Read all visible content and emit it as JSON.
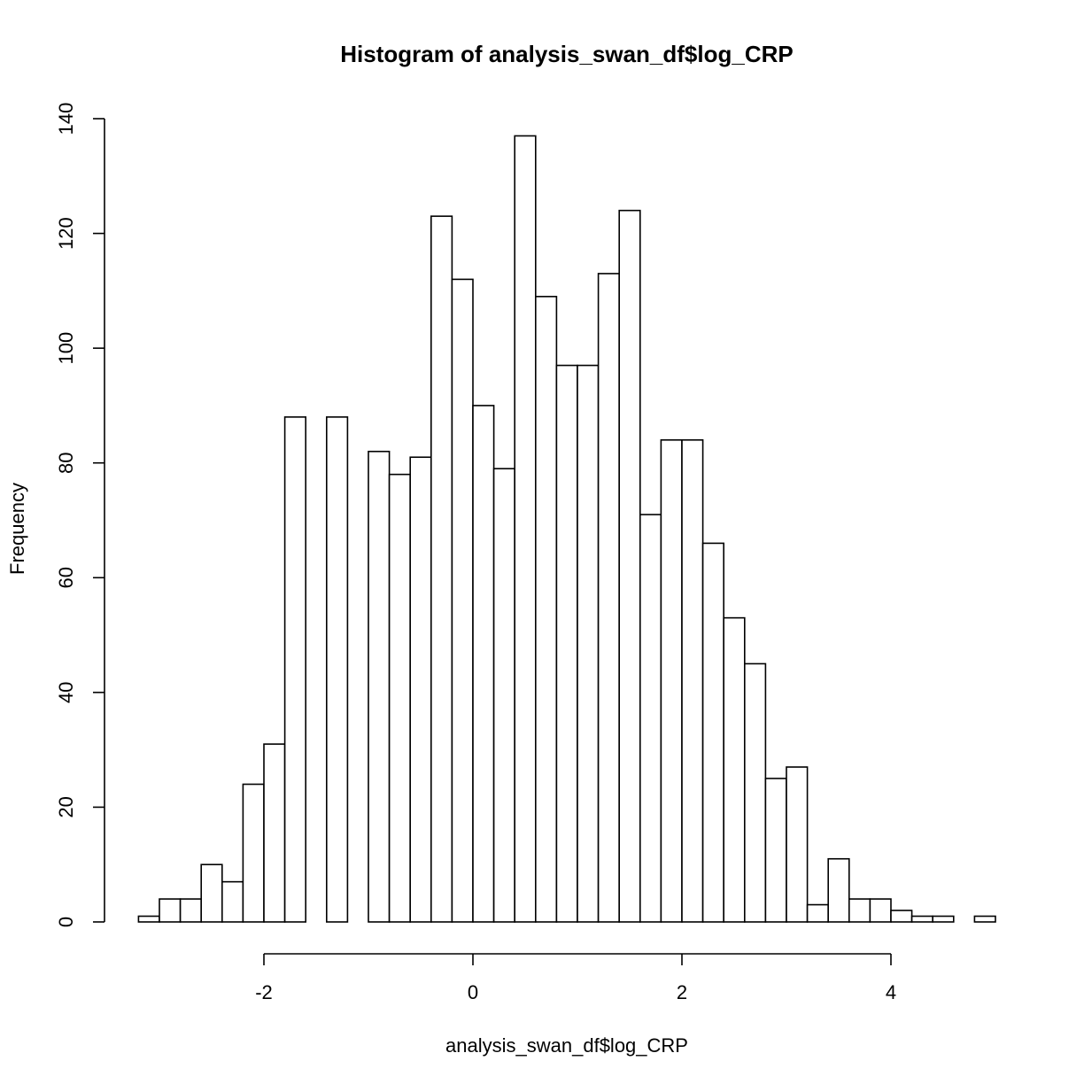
{
  "chart_data": {
    "type": "bar",
    "title": "Histogram of analysis_swan_df$log_CRP",
    "xlabel": "analysis_swan_df$log_CRP",
    "ylabel": "Frequency",
    "bin_width": 0.2,
    "bins_start": -3.2,
    "values": [
      1,
      4,
      4,
      10,
      7,
      24,
      31,
      88,
      0,
      88,
      0,
      82,
      78,
      81,
      123,
      112,
      90,
      79,
      137,
      109,
      97,
      97,
      113,
      124,
      71,
      84,
      84,
      66,
      53,
      45,
      25,
      27,
      3,
      11,
      4,
      4,
      2,
      1,
      1,
      0,
      1
    ],
    "xlim": [
      -3.2,
      5.0
    ],
    "ylim": [
      0,
      140
    ],
    "x_ticks": [
      -2,
      0,
      2,
      4
    ],
    "x_tick_labels": [
      "-2",
      "0",
      "2",
      "4"
    ],
    "y_ticks": [
      0,
      20,
      40,
      60,
      80,
      100,
      120,
      140
    ],
    "y_tick_labels": [
      "0",
      "20",
      "40",
      "60",
      "80",
      "100",
      "120",
      "140"
    ],
    "grid": false,
    "colors": {
      "bar_fill": "#ffffff",
      "bar_stroke": "#000000"
    }
  }
}
